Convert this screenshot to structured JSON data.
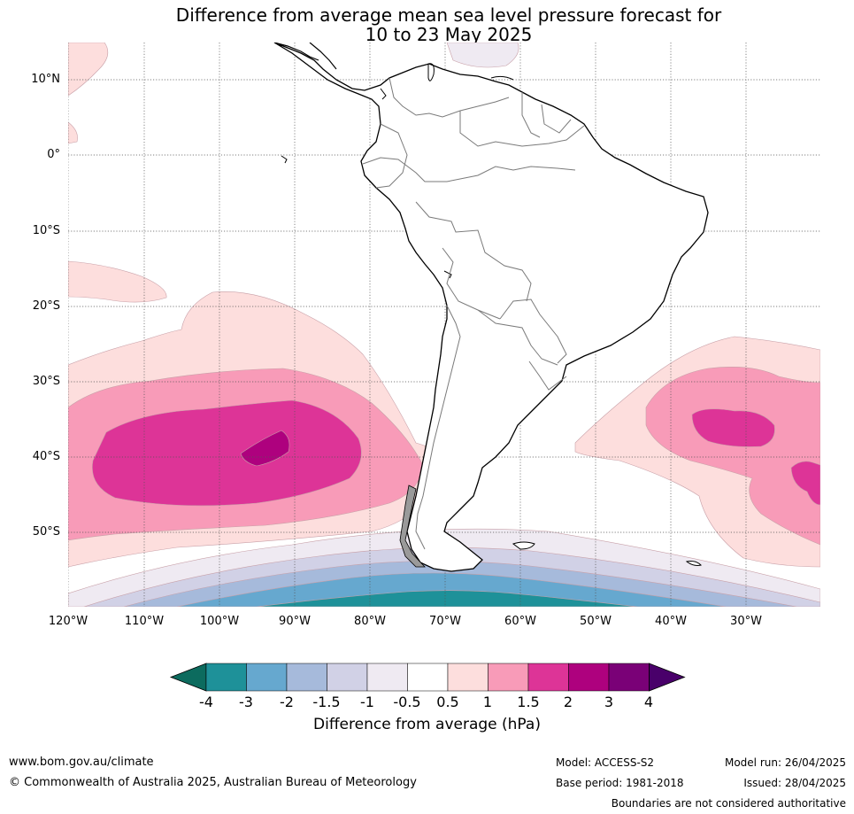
{
  "title_line1": "Difference from average mean sea level pressure forecast for",
  "title_line2": "10 to 23 May 2025",
  "lat_labels": [
    "10°N",
    "0°",
    "10°S",
    "20°S",
    "30°S",
    "40°S",
    "50°S"
  ],
  "lon_labels": [
    "120°W",
    "110°W",
    "100°W",
    "90°W",
    "80°W",
    "70°W",
    "60°W",
    "50°W",
    "40°W",
    "30°W"
  ],
  "colorbar": {
    "title": "Difference from average (hPa)",
    "ticks": [
      "-4",
      "-3",
      "-2",
      "-1.5",
      "-1",
      "-0.5",
      "0.5",
      "1",
      "1.5",
      "2",
      "3",
      "4"
    ],
    "colors": [
      "#0c6b5e",
      "#1e9199",
      "#66a8cf",
      "#a6badb",
      "#d1d1e6",
      "#efeaf2",
      "#ffffff",
      "#fddedd",
      "#f89bb8",
      "#dd3497",
      "#ae017e",
      "#7a0177",
      "#49006a"
    ]
  },
  "footer": {
    "website": "www.bom.gov.au/climate",
    "copyright": "© Commonwealth of Australia 2025, Australian Bureau of Meteorology",
    "model": "Model: ACCESS-S2",
    "base_period": "Base period: 1981-2018",
    "model_run": "Model run: 26/04/2025",
    "issued": "Issued: 28/04/2025",
    "disclaimer": "Boundaries are not considered authoritative"
  }
}
